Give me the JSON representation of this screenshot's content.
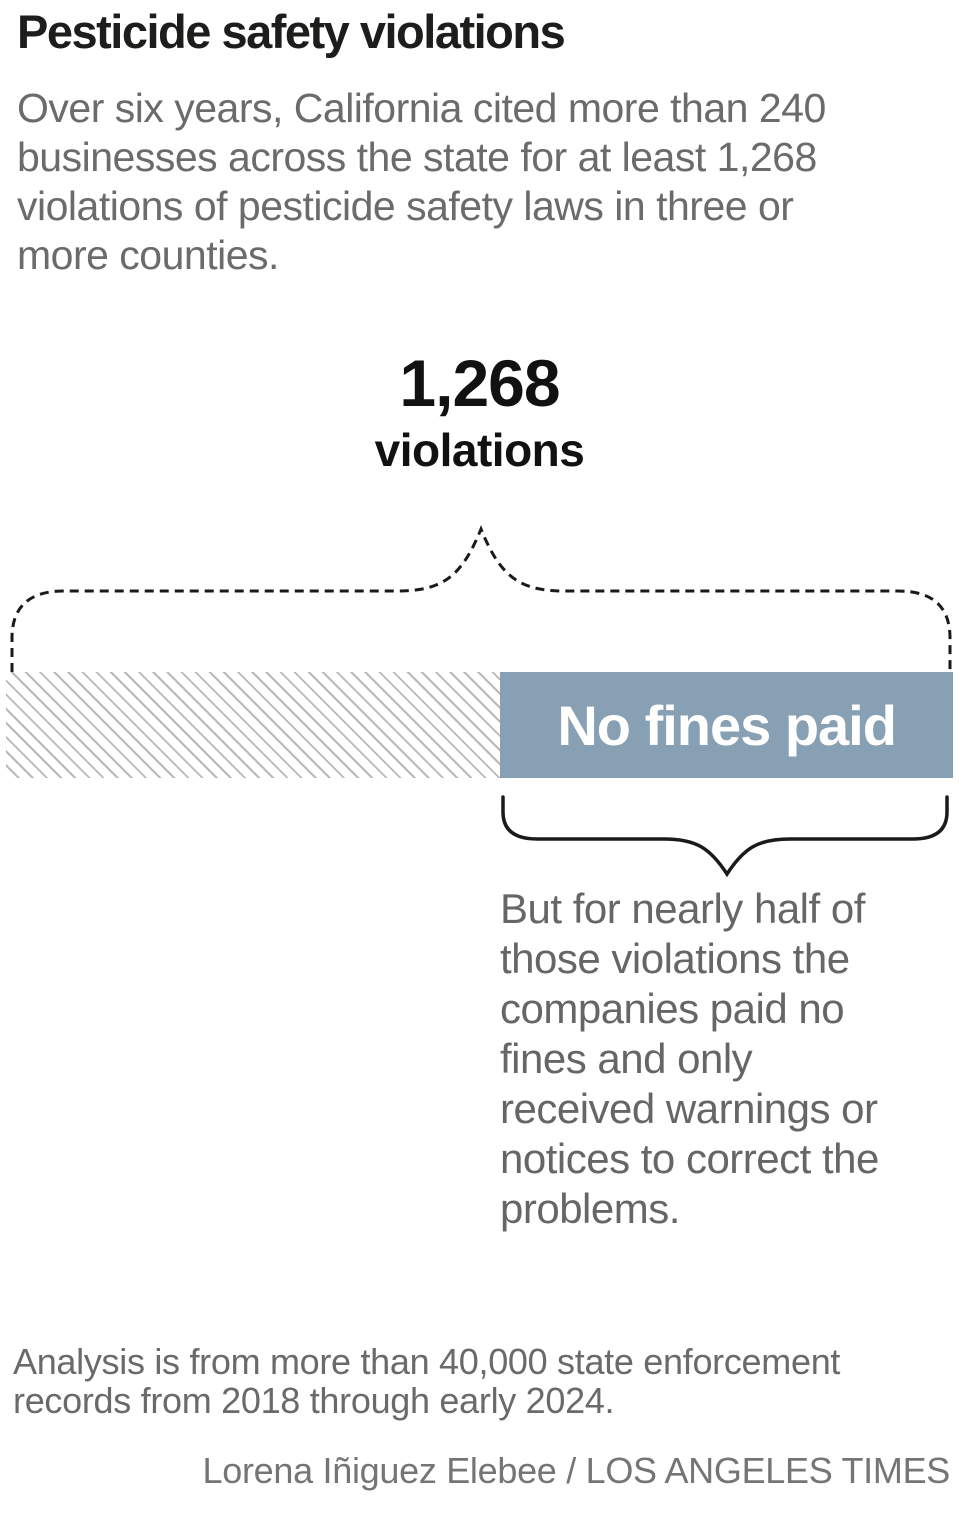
{
  "header": {
    "title": "Pesticide safety violations",
    "subtitle": "Over six years, California cited more than 240\nbusinesses across the state for at least 1,268\nviolations of pesticide safety laws in three or\nmore counties."
  },
  "chart_data": {
    "type": "bar",
    "title": "Pesticide safety violations",
    "total_value": 1268,
    "total_label": "1,268",
    "total_unit": "violations",
    "orientation": "horizontal-single-stacked-bar",
    "segments": [
      {
        "name": "violations-with-fines-or-other-outcomes",
        "share_pct": 52.2,
        "pattern": "diagonal-hatch",
        "hatch_color": "#b9b9b9",
        "label": ""
      },
      {
        "name": "violations-with-no-fines-paid",
        "share_pct": 47.8,
        "fill": "#88a0b3",
        "label": "No fines paid",
        "label_color": "#ffffff"
      }
    ],
    "top_brace_caption": "1,268 violations (dashed brace spans the full bar)",
    "callout": "But for nearly half of\nthose violations the\ncompanies paid no\nfines and only\nreceived warnings or\nnotices to correct the\nproblems."
  },
  "footer": {
    "note": "Analysis is from more than 40,000 state enforcement\nrecords from 2018 through early 2024.",
    "credit": "Lorena Iñiguez Elebee / LOS ANGELES TIMES"
  },
  "colors": {
    "accent_blue": "#88a0b3",
    "hatch_gray": "#b9b9b9",
    "text_dark": "#1d1d1b",
    "text_gray": "#6b6b6b",
    "brace_black": "#1a1a1a"
  }
}
